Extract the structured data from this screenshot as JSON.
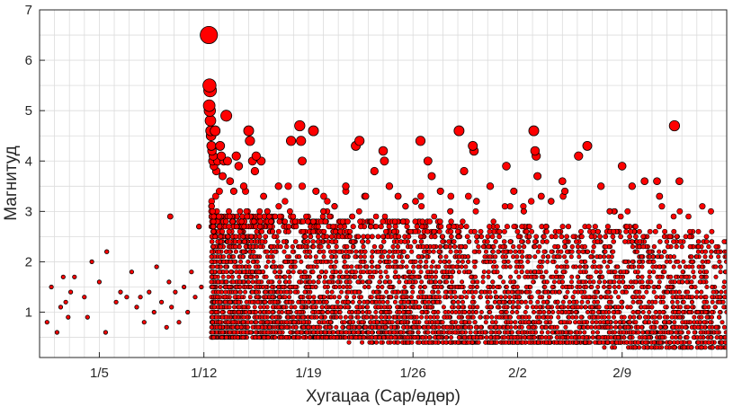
{
  "chart_data": {
    "type": "scatter",
    "title": "",
    "xlabel": "Хугацаа (Сар/өдөр)",
    "ylabel": "Магнитуд",
    "x_unit": "date",
    "xlim": [
      "2021-01-01",
      "2021-02-16"
    ],
    "ylim": [
      0.1,
      7
    ],
    "x_ticks": [
      {
        "date": "2021-01-05",
        "label": "1/5"
      },
      {
        "date": "2021-01-12",
        "label": "1/12"
      },
      {
        "date": "2021-01-19",
        "label": "1/19"
      },
      {
        "date": "2021-01-26",
        "label": "1/26"
      },
      {
        "date": "2021-02-02",
        "label": "2/2"
      },
      {
        "date": "2021-02-09",
        "label": "2/9"
      }
    ],
    "y_ticks": [
      1,
      2,
      3,
      4,
      5,
      6,
      7
    ],
    "grid": true,
    "legend": "none",
    "marker_color": "#ff0000",
    "marker_edge_color": "#000000",
    "marker_size_encodes": "magnitude",
    "points": [
      {
        "x": "2021-01-01 12:00",
        "y": 0.8
      },
      {
        "x": "2021-01-01 19:00",
        "y": 1.5
      },
      {
        "x": "2021-01-02 04:00",
        "y": 0.6
      },
      {
        "x": "2021-01-02 10:00",
        "y": 1.1
      },
      {
        "x": "2021-01-02 14:00",
        "y": 1.7
      },
      {
        "x": "2021-01-02 18:00",
        "y": 1.2
      },
      {
        "x": "2021-01-02 22:00",
        "y": 0.9
      },
      {
        "x": "2021-01-03 02:00",
        "y": 1.4
      },
      {
        "x": "2021-01-03 08:00",
        "y": 1.7
      },
      {
        "x": "2021-01-04 00:00",
        "y": 1.3
      },
      {
        "x": "2021-01-04 05:00",
        "y": 0.9
      },
      {
        "x": "2021-01-04 12:00",
        "y": 2.0
      },
      {
        "x": "2021-01-05 00:00",
        "y": 1.6
      },
      {
        "x": "2021-01-05 10:00",
        "y": 0.6
      },
      {
        "x": "2021-01-05 12:00",
        "y": 2.2
      },
      {
        "x": "2021-01-06 03:00",
        "y": 1.2
      },
      {
        "x": "2021-01-06 10:00",
        "y": 1.4
      },
      {
        "x": "2021-01-06 20:00",
        "y": 1.3
      },
      {
        "x": "2021-01-07 04:00",
        "y": 1.8
      },
      {
        "x": "2021-01-07 12:00",
        "y": 1.1
      },
      {
        "x": "2021-01-07 18:00",
        "y": 1.3
      },
      {
        "x": "2021-01-08 00:00",
        "y": 0.8
      },
      {
        "x": "2021-01-08 08:00",
        "y": 1.4
      },
      {
        "x": "2021-01-08 16:00",
        "y": 1.0
      },
      {
        "x": "2021-01-08 20:00",
        "y": 1.9
      },
      {
        "x": "2021-01-09 04:00",
        "y": 1.2
      },
      {
        "x": "2021-01-09 12:00",
        "y": 0.7
      },
      {
        "x": "2021-01-09 16:00",
        "y": 1.6
      },
      {
        "x": "2021-01-09 20:00",
        "y": 1.1
      },
      {
        "x": "2021-01-10 02:00",
        "y": 1.4
      },
      {
        "x": "2021-01-09 18:00",
        "y": 2.9
      },
      {
        "x": "2021-01-10 08:00",
        "y": 0.8
      },
      {
        "x": "2021-01-10 16:00",
        "y": 1.5
      },
      {
        "x": "2021-01-10 22:00",
        "y": 1.0
      },
      {
        "x": "2021-01-11 04:00",
        "y": 1.8
      },
      {
        "x": "2021-01-11 10:00",
        "y": 1.3
      },
      {
        "x": "2021-01-11 16:00",
        "y": 2.7
      },
      {
        "x": "2021-01-11 20:00",
        "y": 1.5
      },
      {
        "x": "2021-01-12 08:00",
        "y": 6.5
      },
      {
        "x": "2021-01-12 09:00",
        "y": 5.5
      },
      {
        "x": "2021-01-12 10:00",
        "y": 5.4
      },
      {
        "x": "2021-01-12 08:30",
        "y": 5.1
      },
      {
        "x": "2021-01-12 09:30",
        "y": 5.0
      },
      {
        "x": "2021-01-12 10:30",
        "y": 4.8
      },
      {
        "x": "2021-01-12 11:00",
        "y": 4.6
      },
      {
        "x": "2021-01-12 11:30",
        "y": 4.5
      },
      {
        "x": "2021-01-12 12:00",
        "y": 4.3
      },
      {
        "x": "2021-01-12 13:00",
        "y": 4.2
      },
      {
        "x": "2021-01-12 14:00",
        "y": 4.0
      },
      {
        "x": "2021-01-12 15:00",
        "y": 4.1
      },
      {
        "x": "2021-01-12 16:00",
        "y": 3.9
      },
      {
        "x": "2021-01-12 18:00",
        "y": 4.6
      },
      {
        "x": "2021-01-12 20:00",
        "y": 3.8
      },
      {
        "x": "2021-01-12 22:00",
        "y": 4.0
      },
      {
        "x": "2021-01-13 02:00",
        "y": 4.3
      },
      {
        "x": "2021-01-13 04:00",
        "y": 4.1
      },
      {
        "x": "2021-01-13 06:00",
        "y": 3.7
      },
      {
        "x": "2021-01-13 08:00",
        "y": 4.0
      },
      {
        "x": "2021-01-13 12:00",
        "y": 4.9
      },
      {
        "x": "2021-01-13 14:00",
        "y": 4.0
      },
      {
        "x": "2021-01-13 18:00",
        "y": 3.6
      },
      {
        "x": "2021-01-14 00:00",
        "y": 3.4
      },
      {
        "x": "2021-01-14 04:00",
        "y": 4.1
      },
      {
        "x": "2021-01-14 08:00",
        "y": 3.9
      },
      {
        "x": "2021-01-14 16:00",
        "y": 3.5
      },
      {
        "x": "2021-01-15 00:00",
        "y": 4.6
      },
      {
        "x": "2021-01-15 02:00",
        "y": 4.4
      },
      {
        "x": "2021-01-15 06:00",
        "y": 4.0
      },
      {
        "x": "2021-01-15 10:00",
        "y": 3.8
      },
      {
        "x": "2021-01-15 12:00",
        "y": 4.1
      },
      {
        "x": "2021-01-15 20:00",
        "y": 4.0
      },
      {
        "x": "2021-01-16 00:00",
        "y": 3.3
      },
      {
        "x": "2021-01-16 06:00",
        "y": 3.0
      },
      {
        "x": "2021-01-17 00:00",
        "y": 3.5
      },
      {
        "x": "2021-01-17 20:00",
        "y": 4.4
      },
      {
        "x": "2021-01-18 10:00",
        "y": 4.7
      },
      {
        "x": "2021-01-18 12:00",
        "y": 4.4
      },
      {
        "x": "2021-01-18 14:00",
        "y": 4.0
      },
      {
        "x": "2021-01-19 08:00",
        "y": 4.6
      },
      {
        "x": "2021-01-19 12:00",
        "y": 3.4
      },
      {
        "x": "2021-01-20 00:00",
        "y": 3.0
      },
      {
        "x": "2021-01-20 18:00",
        "y": 3.1
      },
      {
        "x": "2021-01-21 12:00",
        "y": 3.5
      },
      {
        "x": "2021-01-22 04:00",
        "y": 4.3
      },
      {
        "x": "2021-01-22 10:00",
        "y": 4.4
      },
      {
        "x": "2021-01-22 20:00",
        "y": 3.3
      },
      {
        "x": "2021-01-23 10:00",
        "y": 3.8
      },
      {
        "x": "2021-01-24 00:00",
        "y": 4.2
      },
      {
        "x": "2021-01-24 02:00",
        "y": 4.0
      },
      {
        "x": "2021-01-24 10:00",
        "y": 3.5
      },
      {
        "x": "2021-01-25 00:00",
        "y": 3.3
      },
      {
        "x": "2021-01-25 12:00",
        "y": 3.1
      },
      {
        "x": "2021-01-26 04:00",
        "y": 3.2
      },
      {
        "x": "2021-01-26 12:00",
        "y": 4.4
      },
      {
        "x": "2021-01-27 00:00",
        "y": 4.0
      },
      {
        "x": "2021-01-27 06:00",
        "y": 3.7
      },
      {
        "x": "2021-01-27 20:00",
        "y": 3.4
      },
      {
        "x": "2021-01-28 12:00",
        "y": 3.0
      },
      {
        "x": "2021-01-29 02:00",
        "y": 4.6
      },
      {
        "x": "2021-01-29 10:00",
        "y": 3.8
      },
      {
        "x": "2021-01-30 00:00",
        "y": 4.3
      },
      {
        "x": "2021-01-30 02:00",
        "y": 4.2
      },
      {
        "x": "2021-01-30 06:00",
        "y": 3.2
      },
      {
        "x": "2021-01-31 04:00",
        "y": 3.5
      },
      {
        "x": "2021-02-01 06:00",
        "y": 3.9
      },
      {
        "x": "2021-02-01 18:00",
        "y": 3.4
      },
      {
        "x": "2021-02-02 10:00",
        "y": 3.0
      },
      {
        "x": "2021-02-03 02:00",
        "y": 4.6
      },
      {
        "x": "2021-02-03 04:00",
        "y": 4.2
      },
      {
        "x": "2021-02-03 06:00",
        "y": 4.1
      },
      {
        "x": "2021-02-03 08:00",
        "y": 3.7
      },
      {
        "x": "2021-02-03 14:00",
        "y": 3.3
      },
      {
        "x": "2021-02-04 06:00",
        "y": 3.2
      },
      {
        "x": "2021-02-05 00:00",
        "y": 3.6
      },
      {
        "x": "2021-02-05 04:00",
        "y": 3.4
      },
      {
        "x": "2021-02-06 02:00",
        "y": 4.1
      },
      {
        "x": "2021-02-06 16:00",
        "y": 4.3
      },
      {
        "x": "2021-02-07 14:00",
        "y": 3.5
      },
      {
        "x": "2021-02-08 04:00",
        "y": 3.0
      },
      {
        "x": "2021-02-09 00:00",
        "y": 3.9
      },
      {
        "x": "2021-02-09 16:00",
        "y": 3.5
      },
      {
        "x": "2021-02-10 12:00",
        "y": 3.6
      },
      {
        "x": "2021-02-11 08:00",
        "y": 3.6
      },
      {
        "x": "2021-02-11 12:00",
        "y": 3.3
      },
      {
        "x": "2021-02-12 12:00",
        "y": 4.7
      },
      {
        "x": "2021-02-12 20:00",
        "y": 3.6
      }
    ],
    "dense_region": {
      "description_of_points": "thousands of events",
      "start": "2021-01-12 12:00",
      "end": "2021-02-16",
      "y_range_start": [
        0.5,
        3.0
      ],
      "y_range_end": [
        0.3,
        2.6
      ],
      "count_estimate": 5000
    }
  }
}
